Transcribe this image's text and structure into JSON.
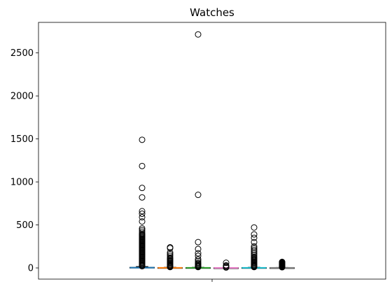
{
  "chart_data": {
    "type": "box",
    "title": "Watches",
    "xlabel": "",
    "ylabel": "",
    "ylim": [
      -130,
      2855
    ],
    "yticks": [
      0,
      500,
      1000,
      1500,
      2000,
      2500
    ],
    "xticks": [
      ""
    ],
    "grid": false,
    "series": [
      {
        "color": "#1f77b4",
        "stats": {
          "min": 0,
          "q1": 1,
          "median": 3,
          "q3": 7,
          "max": 16
        },
        "outliers": [
          20,
          30,
          40,
          50,
          60,
          70,
          80,
          90,
          100,
          110,
          120,
          130,
          140,
          150,
          160,
          170,
          180,
          190,
          200,
          210,
          220,
          230,
          240,
          250,
          260,
          270,
          280,
          290,
          300,
          310,
          320,
          330,
          340,
          350,
          360,
          370,
          380,
          390,
          400,
          420,
          440,
          460,
          540,
          590,
          630,
          660,
          820,
          930,
          1185,
          1490
        ]
      },
      {
        "color": "#ff7f0e",
        "stats": {
          "min": 0,
          "q1": 0,
          "median": 1,
          "q3": 3,
          "max": 7
        },
        "outliers": [
          10,
          15,
          20,
          30,
          40,
          50,
          60,
          70,
          80,
          90,
          100,
          110,
          120,
          140,
          160,
          180,
          230,
          240
        ]
      },
      {
        "color": "#2ca02c",
        "stats": {
          "min": 0,
          "q1": 0,
          "median": 1,
          "q3": 3,
          "max": 7
        },
        "outliers": [
          10,
          15,
          20,
          30,
          40,
          50,
          60,
          80,
          100,
          140,
          170,
          220,
          300,
          850,
          2715
        ]
      },
      {
        "color": "#e377c2",
        "stats": {
          "min": 0,
          "q1": 0,
          "median": 0,
          "q3": 1,
          "max": 2
        },
        "outliers": [
          5,
          10,
          20,
          30,
          60
        ]
      },
      {
        "color": "#17becf",
        "stats": {
          "min": 0,
          "q1": 0,
          "median": 1,
          "q3": 3,
          "max": 7
        },
        "outliers": [
          10,
          15,
          20,
          30,
          40,
          50,
          60,
          70,
          80,
          90,
          100,
          110,
          120,
          130,
          150,
          170,
          190,
          210,
          230,
          250,
          300,
          350,
          390,
          470
        ]
      },
      {
        "color": "#7f7f7f",
        "stats": {
          "min": 0,
          "q1": 0,
          "median": 1,
          "q3": 2,
          "max": 5
        },
        "outliers": [
          8,
          12,
          16,
          20,
          25,
          30,
          35,
          40,
          45,
          50,
          55,
          60,
          65,
          70
        ]
      }
    ]
  }
}
